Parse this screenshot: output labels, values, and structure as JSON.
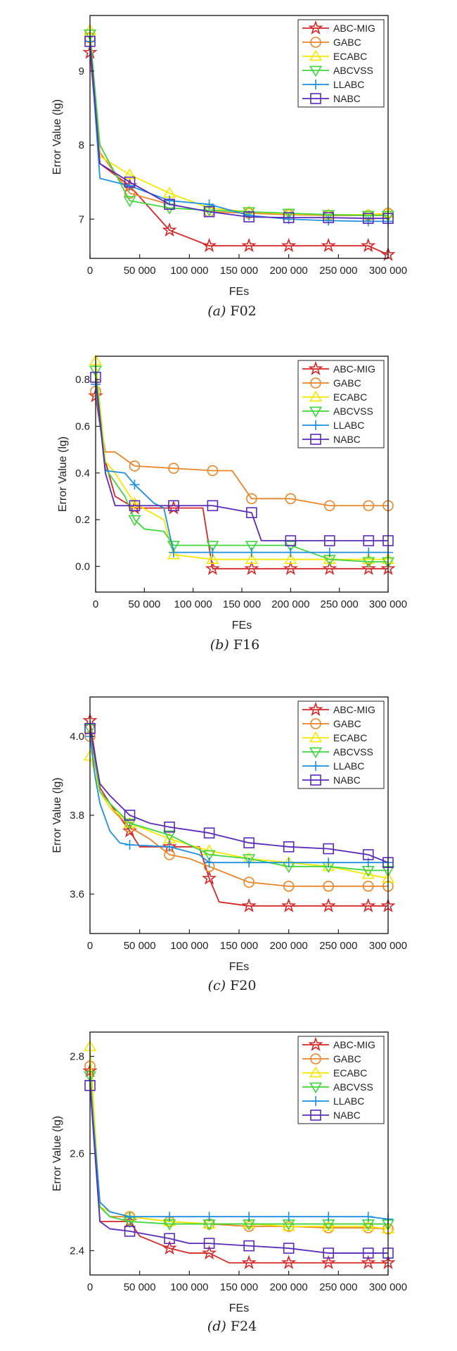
{
  "chart_data": [
    {
      "type": "line",
      "caption": {
        "letter": "(a)",
        "name": "F02"
      },
      "xlabel": "FEs",
      "ylabel": "Error Value (lg)",
      "xlim": [
        0,
        300000
      ],
      "ylim": [
        6.47,
        9.75
      ],
      "xticks": [
        0,
        50000,
        100000,
        150000,
        200000,
        250000,
        300000
      ],
      "xtick_labels": [
        "0",
        "50 000",
        "100 000",
        "150 000",
        "200 000",
        "250 000",
        "300 000"
      ],
      "yticks": [
        7,
        8,
        9
      ],
      "ytick_labels": [
        "7",
        "8",
        "9"
      ],
      "legend_position": "top-right",
      "grid": false,
      "series": [
        {
          "name": "ABC-MIG",
          "x": [
            0,
            10000,
            40000,
            80000,
            120000,
            160000,
            200000,
            240000,
            280000,
            300000
          ],
          "y": [
            9.25,
            7.75,
            7.45,
            6.85,
            6.64,
            6.64,
            6.64,
            6.64,
            6.64,
            6.52
          ]
        },
        {
          "name": "GABC",
          "x": [
            0,
            10000,
            40000,
            80000,
            120000,
            160000,
            200000,
            240000,
            280000,
            300000
          ],
          "y": [
            9.45,
            7.9,
            7.35,
            7.2,
            7.1,
            7.08,
            7.06,
            7.05,
            7.05,
            7.08
          ]
        },
        {
          "name": "ECABC",
          "x": [
            0,
            10000,
            40000,
            80000,
            120000,
            160000,
            200000,
            240000,
            280000,
            300000
          ],
          "y": [
            9.55,
            7.85,
            7.6,
            7.35,
            7.15,
            7.1,
            7.07,
            7.06,
            7.06,
            7.08
          ]
        },
        {
          "name": "ABCVSS",
          "x": [
            0,
            10000,
            40000,
            80000,
            120000,
            160000,
            200000,
            240000,
            280000,
            300000
          ],
          "y": [
            9.5,
            8.0,
            7.25,
            7.15,
            7.12,
            7.1,
            7.08,
            7.06,
            7.05,
            7.05
          ]
        },
        {
          "name": "LLABC",
          "x": [
            0,
            10000,
            40000,
            80000,
            120000,
            160000,
            200000,
            240000,
            280000,
            300000
          ],
          "y": [
            9.4,
            7.55,
            7.45,
            7.25,
            7.2,
            7.05,
            7.0,
            6.98,
            6.97,
            6.97
          ]
        },
        {
          "name": "NABC",
          "x": [
            0,
            10000,
            40000,
            80000,
            120000,
            160000,
            200000,
            240000,
            280000,
            300000
          ],
          "y": [
            9.4,
            7.75,
            7.5,
            7.2,
            7.1,
            7.03,
            7.02,
            7.02,
            7.01,
            7.01
          ]
        }
      ]
    },
    {
      "type": "line",
      "caption": {
        "letter": "(b)",
        "name": "F16"
      },
      "xlabel": "FEs",
      "ylabel": "Error Value (lg)",
      "xlim": [
        0,
        300000
      ],
      "ylim": [
        -0.11,
        0.9
      ],
      "xticks": [
        0,
        50000,
        100000,
        150000,
        200000,
        250000,
        300000
      ],
      "xtick_labels": [
        "0",
        "50 000",
        "100 000",
        "150 000",
        "200 000",
        "250 000",
        "300 000"
      ],
      "yticks": [
        0.0,
        0.2,
        0.4,
        0.6,
        0.8
      ],
      "ytick_labels": [
        "0.0",
        "0.2",
        "0.4",
        "0.6",
        "0.8"
      ],
      "legend_position": "top-right",
      "grid": false,
      "series": [
        {
          "name": "ABC-MIG",
          "x": [
            0,
            10000,
            20000,
            40000,
            80000,
            100000,
            110000,
            120000,
            160000,
            200000,
            240000,
            280000,
            300000
          ],
          "y": [
            0.73,
            0.45,
            0.3,
            0.25,
            0.25,
            0.25,
            0.25,
            -0.01,
            -0.01,
            -0.01,
            -0.01,
            -0.01,
            -0.01
          ]
        },
        {
          "name": "GABC",
          "x": [
            0,
            10000,
            20000,
            40000,
            80000,
            120000,
            140000,
            160000,
            200000,
            240000,
            280000,
            300000
          ],
          "y": [
            0.75,
            0.49,
            0.49,
            0.43,
            0.42,
            0.41,
            0.41,
            0.29,
            0.29,
            0.26,
            0.26,
            0.26
          ]
        },
        {
          "name": "ECABC",
          "x": [
            0,
            10000,
            20000,
            40000,
            70000,
            80000,
            120000,
            160000,
            200000,
            240000,
            280000,
            300000
          ],
          "y": [
            0.88,
            0.45,
            0.4,
            0.27,
            0.2,
            0.05,
            0.03,
            0.03,
            0.03,
            0.03,
            0.03,
            0.03
          ]
        },
        {
          "name": "ABCVSS",
          "x": [
            0,
            10000,
            30000,
            40000,
            50000,
            70000,
            80000,
            120000,
            160000,
            200000,
            240000,
            280000,
            300000
          ],
          "y": [
            0.84,
            0.42,
            0.3,
            0.2,
            0.16,
            0.15,
            0.09,
            0.09,
            0.09,
            0.09,
            0.03,
            0.02,
            0.02
          ]
        },
        {
          "name": "LLABC",
          "x": [
            0,
            10000,
            30000,
            40000,
            60000,
            70000,
            80000,
            120000,
            160000,
            200000,
            240000,
            280000,
            300000
          ],
          "y": [
            0.78,
            0.41,
            0.4,
            0.35,
            0.27,
            0.25,
            0.06,
            0.06,
            0.06,
            0.06,
            0.06,
            0.06,
            0.06
          ]
        },
        {
          "name": "NABC",
          "x": [
            0,
            10000,
            20000,
            40000,
            80000,
            120000,
            160000,
            170000,
            200000,
            240000,
            280000,
            300000
          ],
          "y": [
            0.81,
            0.4,
            0.26,
            0.26,
            0.26,
            0.26,
            0.23,
            0.11,
            0.11,
            0.11,
            0.11,
            0.11
          ]
        }
      ]
    },
    {
      "type": "line",
      "caption": {
        "letter": "(c)",
        "name": "F20"
      },
      "xlabel": "FEs",
      "ylabel": "Error Value (lg)",
      "xlim": [
        0,
        300000
      ],
      "ylim": [
        3.5,
        4.1
      ],
      "xticks": [
        0,
        50000,
        100000,
        150000,
        200000,
        250000,
        300000
      ],
      "xtick_labels": [
        "0",
        "50 000",
        "100 000",
        "150 000",
        "200 000",
        "250 000",
        "300 000"
      ],
      "yticks": [
        3.6,
        3.8,
        4.0
      ],
      "ytick_labels": [
        "3.6",
        "3.8",
        "4.0"
      ],
      "legend_position": "top-right",
      "grid": false,
      "series": [
        {
          "name": "ABC-MIG",
          "x": [
            0,
            10000,
            20000,
            40000,
            50000,
            80000,
            110000,
            120000,
            130000,
            160000,
            200000,
            240000,
            280000,
            300000
          ],
          "y": [
            4.04,
            3.87,
            3.83,
            3.76,
            3.72,
            3.72,
            3.72,
            3.64,
            3.58,
            3.57,
            3.57,
            3.57,
            3.57,
            3.57
          ]
        },
        {
          "name": "GABC",
          "x": [
            0,
            10000,
            20000,
            40000,
            60000,
            80000,
            100000,
            120000,
            140000,
            160000,
            200000,
            240000,
            280000,
            300000
          ],
          "y": [
            4.0,
            3.86,
            3.82,
            3.77,
            3.74,
            3.7,
            3.69,
            3.67,
            3.65,
            3.63,
            3.62,
            3.62,
            3.62,
            3.62
          ]
        },
        {
          "name": "ECABC",
          "x": [
            0,
            10000,
            20000,
            40000,
            80000,
            120000,
            160000,
            200000,
            240000,
            280000,
            300000
          ],
          "y": [
            3.95,
            3.86,
            3.82,
            3.78,
            3.74,
            3.71,
            3.69,
            3.68,
            3.67,
            3.65,
            3.64
          ]
        },
        {
          "name": "ABCVSS",
          "x": [
            0,
            10000,
            20000,
            40000,
            80000,
            120000,
            160000,
            200000,
            240000,
            280000,
            300000
          ],
          "y": [
            4.02,
            3.86,
            3.83,
            3.78,
            3.75,
            3.7,
            3.69,
            3.67,
            3.67,
            3.66,
            3.66
          ]
        },
        {
          "name": "LLABC",
          "x": [
            0,
            5000,
            10000,
            20000,
            30000,
            40000,
            80000,
            110000,
            120000,
            160000,
            200000,
            240000,
            280000,
            300000
          ],
          "y": [
            4.0,
            3.9,
            3.83,
            3.76,
            3.73,
            3.725,
            3.72,
            3.7,
            3.68,
            3.68,
            3.68,
            3.68,
            3.68,
            3.68
          ]
        },
        {
          "name": "NABC",
          "x": [
            0,
            10000,
            20000,
            40000,
            60000,
            80000,
            120000,
            160000,
            200000,
            240000,
            280000,
            300000
          ],
          "y": [
            4.02,
            3.88,
            3.85,
            3.8,
            3.78,
            3.77,
            3.755,
            3.73,
            3.72,
            3.715,
            3.7,
            3.68
          ]
        }
      ]
    },
    {
      "type": "line",
      "caption": {
        "letter": "(d)",
        "name": "F24"
      },
      "xlabel": "FEs",
      "ylabel": "Error Value (lg)",
      "xlim": [
        0,
        300000
      ],
      "ylim": [
        2.35,
        2.85
      ],
      "xticks": [
        0,
        50000,
        100000,
        150000,
        200000,
        250000,
        300000
      ],
      "xtick_labels": [
        "0",
        "50 000",
        "100 000",
        "150 000",
        "200 000",
        "250 000",
        "300 000"
      ],
      "yticks": [
        2.4,
        2.6,
        2.8
      ],
      "ytick_labels": [
        "2.4",
        "2.6",
        "2.8"
      ],
      "legend_position": "top-right",
      "grid": false,
      "series": [
        {
          "name": "ABC-MIG",
          "x": [
            0,
            10000,
            40000,
            50000,
            80000,
            100000,
            120000,
            140000,
            160000,
            200000,
            240000,
            280000,
            300000
          ],
          "y": [
            2.77,
            2.46,
            2.46,
            2.43,
            2.405,
            2.395,
            2.395,
            2.375,
            2.375,
            2.375,
            2.375,
            2.375,
            2.375
          ]
        },
        {
          "name": "GABC",
          "x": [
            0,
            10000,
            20000,
            40000,
            80000,
            120000,
            160000,
            200000,
            240000,
            280000,
            300000
          ],
          "y": [
            2.78,
            2.49,
            2.47,
            2.47,
            2.46,
            2.455,
            2.45,
            2.45,
            2.447,
            2.447,
            2.445
          ]
        },
        {
          "name": "ECABC",
          "x": [
            0,
            10000,
            20000,
            40000,
            80000,
            120000,
            160000,
            200000,
            240000,
            280000,
            300000
          ],
          "y": [
            2.82,
            2.49,
            2.48,
            2.47,
            2.46,
            2.455,
            2.455,
            2.45,
            2.45,
            2.45,
            2.445
          ]
        },
        {
          "name": "ABCVSS",
          "x": [
            0,
            10000,
            20000,
            40000,
            80000,
            120000,
            160000,
            200000,
            240000,
            280000,
            300000
          ],
          "y": [
            2.76,
            2.49,
            2.47,
            2.46,
            2.455,
            2.455,
            2.455,
            2.455,
            2.455,
            2.455,
            2.455
          ]
        },
        {
          "name": "LLABC",
          "x": [
            0,
            10000,
            20000,
            40000,
            80000,
            120000,
            160000,
            200000,
            240000,
            280000,
            300000
          ],
          "y": [
            2.75,
            2.5,
            2.48,
            2.47,
            2.47,
            2.47,
            2.47,
            2.47,
            2.47,
            2.47,
            2.465
          ]
        },
        {
          "name": "NABC",
          "x": [
            0,
            10000,
            20000,
            40000,
            80000,
            100000,
            120000,
            160000,
            200000,
            240000,
            280000,
            300000
          ],
          "y": [
            2.74,
            2.46,
            2.445,
            2.44,
            2.425,
            2.415,
            2.415,
            2.41,
            2.405,
            2.395,
            2.395,
            2.395
          ]
        }
      ]
    }
  ],
  "series_styles": [
    {
      "name": "ABC-MIG",
      "color": "#d62728",
      "marker": "star"
    },
    {
      "name": "GABC",
      "color": "#e8862a",
      "marker": "circle"
    },
    {
      "name": "ECABC",
      "color": "#f5e800",
      "marker": "triangle-up"
    },
    {
      "name": "ABCVSS",
      "color": "#3fd63f",
      "marker": "triangle-down"
    },
    {
      "name": "LLABC",
      "color": "#1f8fe0",
      "marker": "plus"
    },
    {
      "name": "NABC",
      "color": "#5a2bb8",
      "marker": "square"
    }
  ]
}
